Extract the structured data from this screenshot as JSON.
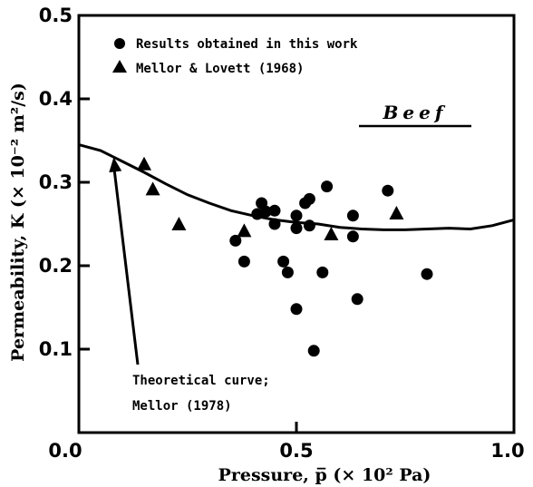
{
  "chart_data": {
    "type": "scatter",
    "title": "Beef",
    "xlabel": "Pressure, p̅ (× 10² Pa)",
    "ylabel": "Permeability, K (× 10⁻² m²/s)",
    "xlim": [
      0.0,
      1.0
    ],
    "ylim": [
      0.0,
      0.5
    ],
    "x_tick_labels": [
      "0.0",
      "0.5",
      "1.0"
    ],
    "y_tick_labels": [
      "0.1",
      "0.2",
      "0.3",
      "0.4",
      "0.5"
    ],
    "grid": false,
    "legend_position": "top-right",
    "series": [
      {
        "name": "Results obtained in this work",
        "marker": "circle",
        "points": [
          [
            0.36,
            0.23
          ],
          [
            0.38,
            0.205
          ],
          [
            0.41,
            0.262
          ],
          [
            0.42,
            0.275
          ],
          [
            0.43,
            0.265
          ],
          [
            0.45,
            0.266
          ],
          [
            0.45,
            0.25
          ],
          [
            0.47,
            0.205
          ],
          [
            0.48,
            0.192
          ],
          [
            0.5,
            0.26
          ],
          [
            0.5,
            0.245
          ],
          [
            0.5,
            0.148
          ],
          [
            0.52,
            0.275
          ],
          [
            0.53,
            0.28
          ],
          [
            0.53,
            0.248
          ],
          [
            0.54,
            0.098
          ],
          [
            0.56,
            0.192
          ],
          [
            0.57,
            0.295
          ],
          [
            0.63,
            0.26
          ],
          [
            0.63,
            0.235
          ],
          [
            0.64,
            0.16
          ],
          [
            0.71,
            0.29
          ],
          [
            0.8,
            0.19
          ]
        ]
      },
      {
        "name": "Mellor & Lovett (1968)",
        "marker": "triangle",
        "points": [
          [
            0.15,
            0.322
          ],
          [
            0.17,
            0.292
          ],
          [
            0.23,
            0.25
          ],
          [
            0.38,
            0.242
          ],
          [
            0.58,
            0.238
          ],
          [
            0.73,
            0.263
          ]
        ]
      },
      {
        "name": "Theoretical curve; Mellor (1978)",
        "style": "line",
        "points": [
          [
            0.0,
            0.345
          ],
          [
            0.05,
            0.338
          ],
          [
            0.1,
            0.325
          ],
          [
            0.15,
            0.312
          ],
          [
            0.2,
            0.298
          ],
          [
            0.25,
            0.285
          ],
          [
            0.3,
            0.275
          ],
          [
            0.35,
            0.266
          ],
          [
            0.4,
            0.26
          ],
          [
            0.45,
            0.255
          ],
          [
            0.5,
            0.252
          ],
          [
            0.55,
            0.25
          ],
          [
            0.6,
            0.246
          ],
          [
            0.65,
            0.244
          ],
          [
            0.7,
            0.243
          ],
          [
            0.75,
            0.243
          ],
          [
            0.8,
            0.244
          ],
          [
            0.85,
            0.245
          ],
          [
            0.9,
            0.244
          ],
          [
            0.95,
            0.248
          ],
          [
            1.0,
            0.255
          ]
        ]
      }
    ],
    "annotations": [
      {
        "text_lines": [
          "Theoretical curve;",
          "Mellor (1978)"
        ],
        "arrow_to": [
          0.08,
          0.33
        ]
      }
    ],
    "legend": [
      {
        "marker": "circle",
        "label": "Results obtained in this work"
      },
      {
        "marker": "triangle",
        "label": "Mellor & Lovett (1968)"
      }
    ]
  }
}
